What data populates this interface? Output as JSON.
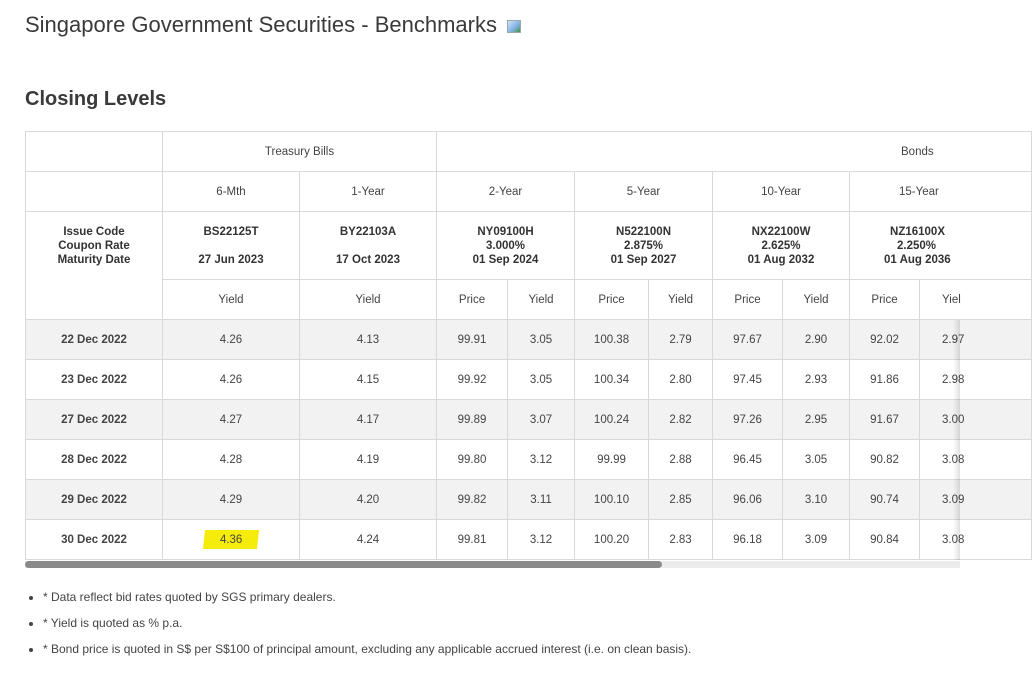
{
  "page": {
    "title": "Singapore Government Securities - Benchmarks",
    "subtitle": "Closing Levels"
  },
  "table": {
    "group_headers": {
      "bills": "Treasury Bills",
      "bonds": "Bonds"
    },
    "tenors": [
      "6-Mth",
      "1-Year",
      "2-Year",
      "5-Year",
      "10-Year",
      "15-Year"
    ],
    "row_labels": {
      "issue_code": "Issue Code",
      "coupon_rate": "Coupon Rate",
      "maturity_date": "Maturity Date"
    },
    "issues": [
      {
        "code": "BS22125T",
        "coupon": "",
        "maturity": "27 Jun 2023"
      },
      {
        "code": "BY22103A",
        "coupon": "",
        "maturity": "17 Oct 2023"
      },
      {
        "code": "NY09100H",
        "coupon": "3.000%",
        "maturity": "01 Sep 2024"
      },
      {
        "code": "N522100N",
        "coupon": "2.875%",
        "maturity": "01 Sep 2027"
      },
      {
        "code": "NX22100W",
        "coupon": "2.625%",
        "maturity": "01 Aug 2032"
      },
      {
        "code": "NZ16100X",
        "coupon": "2.250%",
        "maturity": "01 Aug 2036"
      }
    ],
    "sub_headers": {
      "yield": "Yield",
      "price": "Price",
      "last_visible": "Yiel"
    },
    "rows": [
      {
        "date": "22 Dec 2022",
        "v": [
          "4.26",
          "4.13",
          "99.91",
          "3.05",
          "100.38",
          "2.79",
          "97.67",
          "2.90",
          "92.02",
          "2.97"
        ]
      },
      {
        "date": "23 Dec 2022",
        "v": [
          "4.26",
          "4.15",
          "99.92",
          "3.05",
          "100.34",
          "2.80",
          "97.45",
          "2.93",
          "91.86",
          "2.98"
        ]
      },
      {
        "date": "27 Dec 2022",
        "v": [
          "4.27",
          "4.17",
          "99.89",
          "3.07",
          "100.24",
          "2.82",
          "97.26",
          "2.95",
          "91.67",
          "3.00"
        ]
      },
      {
        "date": "28 Dec 2022",
        "v": [
          "4.28",
          "4.19",
          "99.80",
          "3.12",
          "99.99",
          "2.88",
          "96.45",
          "3.05",
          "90.82",
          "3.08"
        ]
      },
      {
        "date": "29 Dec 2022",
        "v": [
          "4.29",
          "4.20",
          "99.82",
          "3.11",
          "100.10",
          "2.85",
          "96.06",
          "3.10",
          "90.74",
          "3.09"
        ]
      },
      {
        "date": "30 Dec 2022",
        "v": [
          "4.36",
          "4.24",
          "99.81",
          "3.12",
          "100.20",
          "2.83",
          "96.18",
          "3.09",
          "90.84",
          "3.08"
        ]
      }
    ]
  },
  "notes": [
    "* Data reflect bid rates quoted by SGS primary dealers.",
    "* Yield is quoted as % p.a.",
    "* Bond price is quoted in S$ per S$100 of principal amount, excluding any applicable accrued interest (i.e. on clean basis)."
  ],
  "colors": {
    "highlight": "#f5ec0c",
    "row_shade": "#f2f2f2",
    "border": "#d9d9d9"
  }
}
